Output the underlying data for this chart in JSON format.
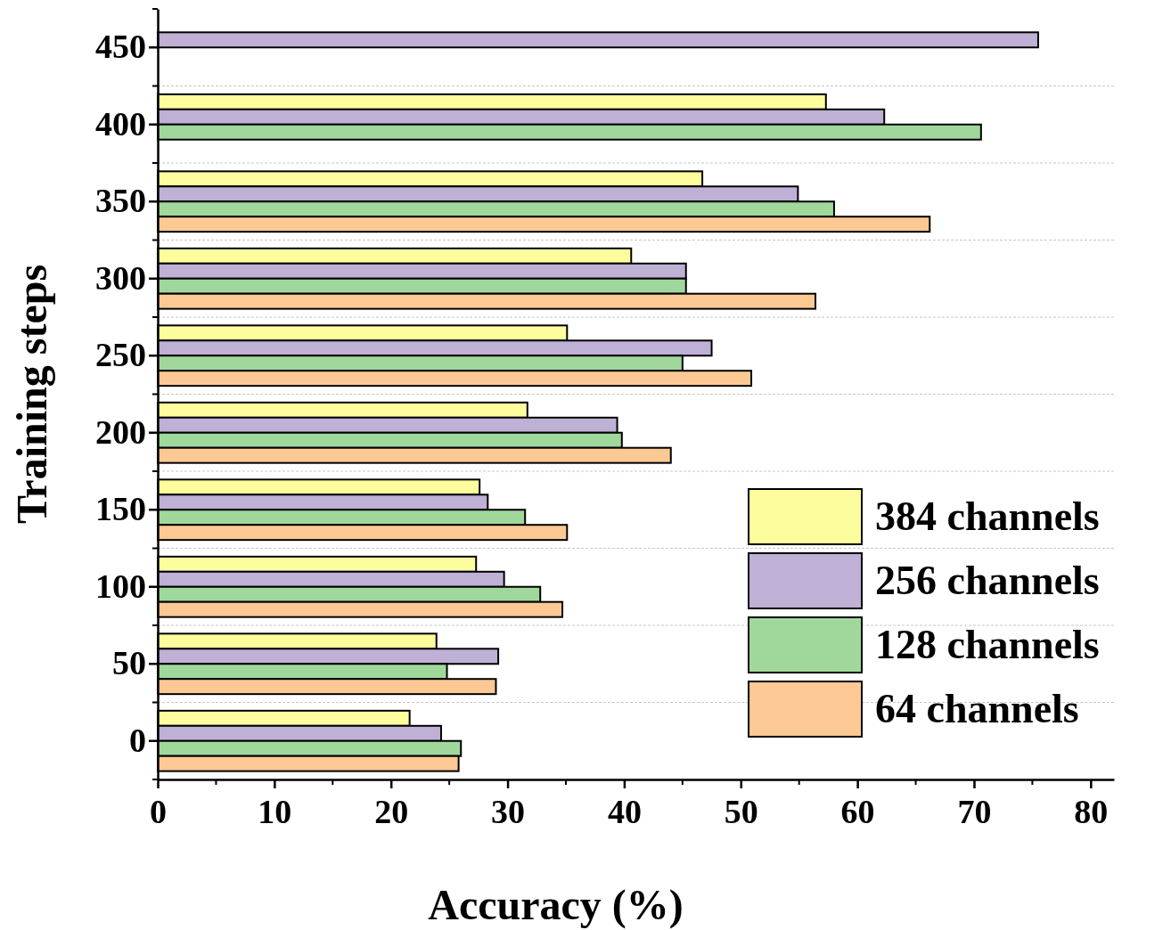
{
  "chart_data": {
    "type": "bar",
    "orientation": "horizontal",
    "xlabel": "Accuracy (%)",
    "ylabel": "Training steps",
    "categories": [
      "450",
      "400",
      "350",
      "300",
      "250",
      "200",
      "150",
      "100",
      "50",
      "0"
    ],
    "series": [
      {
        "name": "384 channels",
        "color": "#fdfd9e",
        "values": [
          null,
          57.3,
          46.7,
          40.6,
          35.1,
          31.7,
          27.6,
          27.3,
          23.9,
          21.6
        ]
      },
      {
        "name": "256 channels",
        "color": "#bfb0d6",
        "values": [
          75.5,
          62.3,
          54.9,
          45.3,
          47.5,
          39.4,
          28.3,
          29.7,
          29.2,
          24.3
        ]
      },
      {
        "name": "128 channels",
        "color": "#a0d89c",
        "values": [
          null,
          70.6,
          58.0,
          45.3,
          45.0,
          39.8,
          31.5,
          32.8,
          24.8,
          26.0
        ]
      },
      {
        "name": "64 channels",
        "color": "#fcc994",
        "values": [
          null,
          null,
          66.2,
          56.4,
          50.9,
          44.0,
          35.1,
          34.7,
          29.0,
          25.8
        ]
      }
    ],
    "xlim": [
      0,
      82
    ],
    "xticks": [
      0,
      10,
      20,
      30,
      40,
      50,
      60,
      70,
      80
    ],
    "grid": "y",
    "legend": "bottom right"
  }
}
